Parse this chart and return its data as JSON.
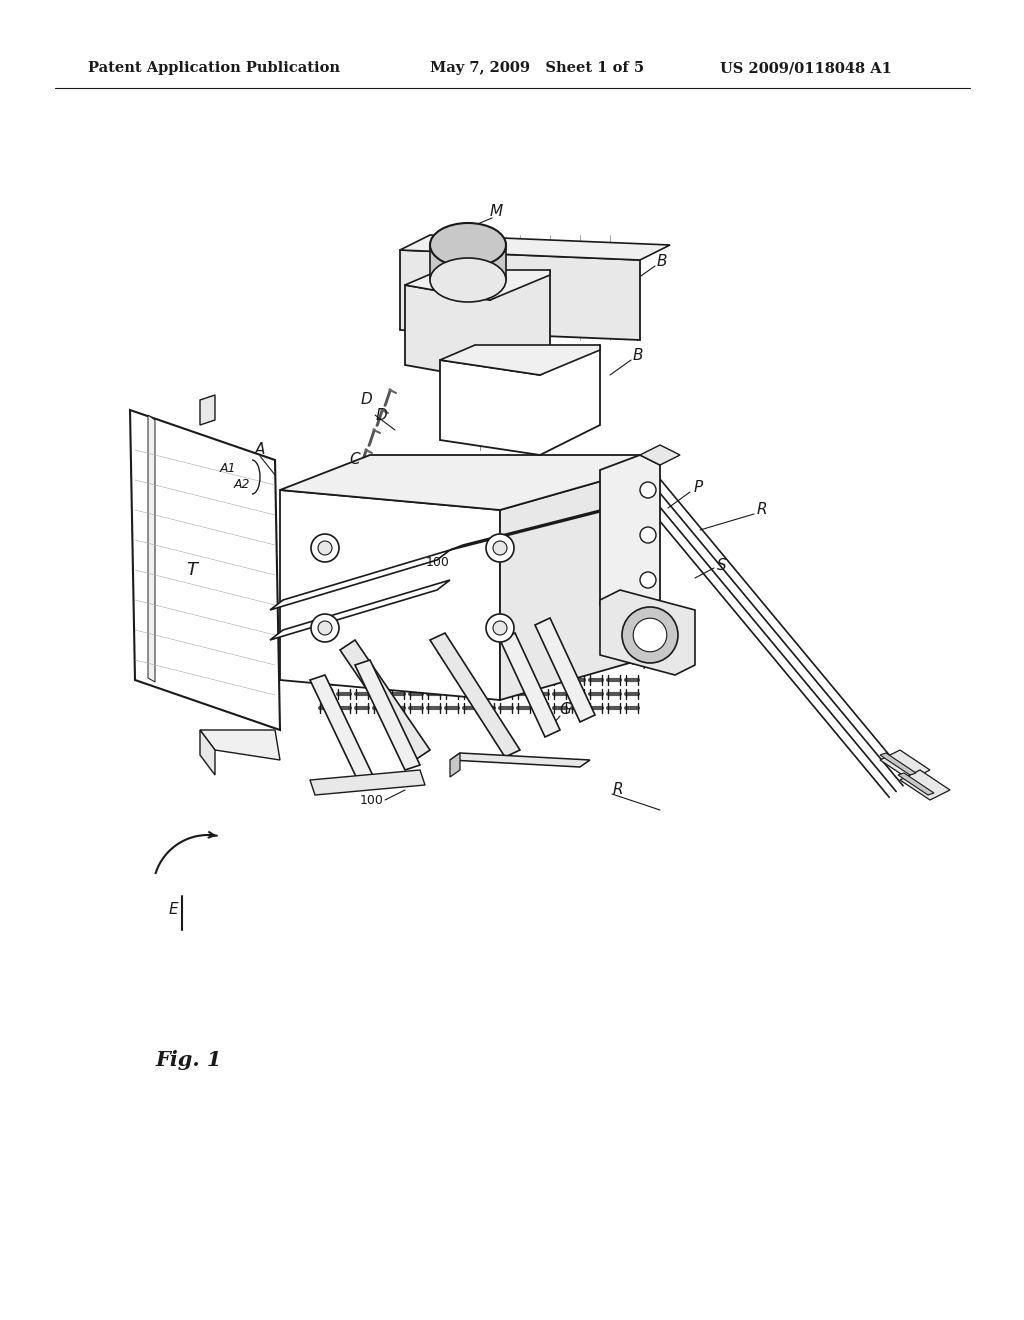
{
  "background_color": "#ffffff",
  "line_color": "#1a1a1a",
  "header_left": "Patent Application Publication",
  "header_center": "May 7, 2009   Sheet 1 of 5",
  "header_right": "US 2009/0118048 A1",
  "header_fontsize": 10.5,
  "fig_label": "Fig. 1",
  "fig_label_fontsize": 15,
  "light_gray": "#e8e8e8",
  "med_gray": "#c8c8c8",
  "dark_gray": "#888888",
  "very_light": "#f0f0f0"
}
